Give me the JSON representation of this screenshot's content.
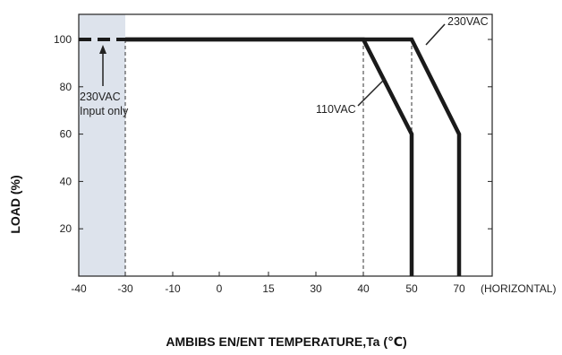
{
  "chart_data": {
    "type": "line",
    "title": "",
    "ylabel": "LOAD (%)",
    "xlabel": "AMBIBS EN/ENT TEMPERATURE,Ta (℃)",
    "x_unit_label": "(HORIZONTAL)",
    "x_ticks": [
      "-40",
      "-30",
      "-10",
      "0",
      "15",
      "30",
      "40",
      "50",
      "70"
    ],
    "y_ticks": [
      20,
      40,
      60,
      80,
      100
    ],
    "ylim": [
      0,
      100
    ],
    "grid": false,
    "shaded_region": {
      "x_from": "-40",
      "x_to": "-30",
      "color": "#dde3ec"
    },
    "dashed_segment": {
      "x_from": "-40",
      "x_to": "-30",
      "y": 100
    },
    "series": [
      {
        "name": "230VAC",
        "points": [
          [
            "-30",
            100
          ],
          [
            "50",
            100
          ],
          [
            "70",
            60
          ],
          [
            "70",
            0
          ]
        ]
      },
      {
        "name": "110VAC",
        "points": [
          [
            "-30",
            100
          ],
          [
            "40",
            100
          ],
          [
            "50",
            60
          ],
          [
            "50",
            0
          ]
        ]
      }
    ],
    "annotations": [
      {
        "text": "230VAC",
        "for": "230VAC"
      },
      {
        "text": "110VAC",
        "for": "110VAC"
      },
      {
        "text": "230VAC",
        "for": "input-only-note"
      },
      {
        "text": "Input only",
        "for": "input-only-note"
      }
    ],
    "reference_lines": [
      "-30",
      "40",
      "50"
    ],
    "line_color": "#1a1a1a"
  }
}
